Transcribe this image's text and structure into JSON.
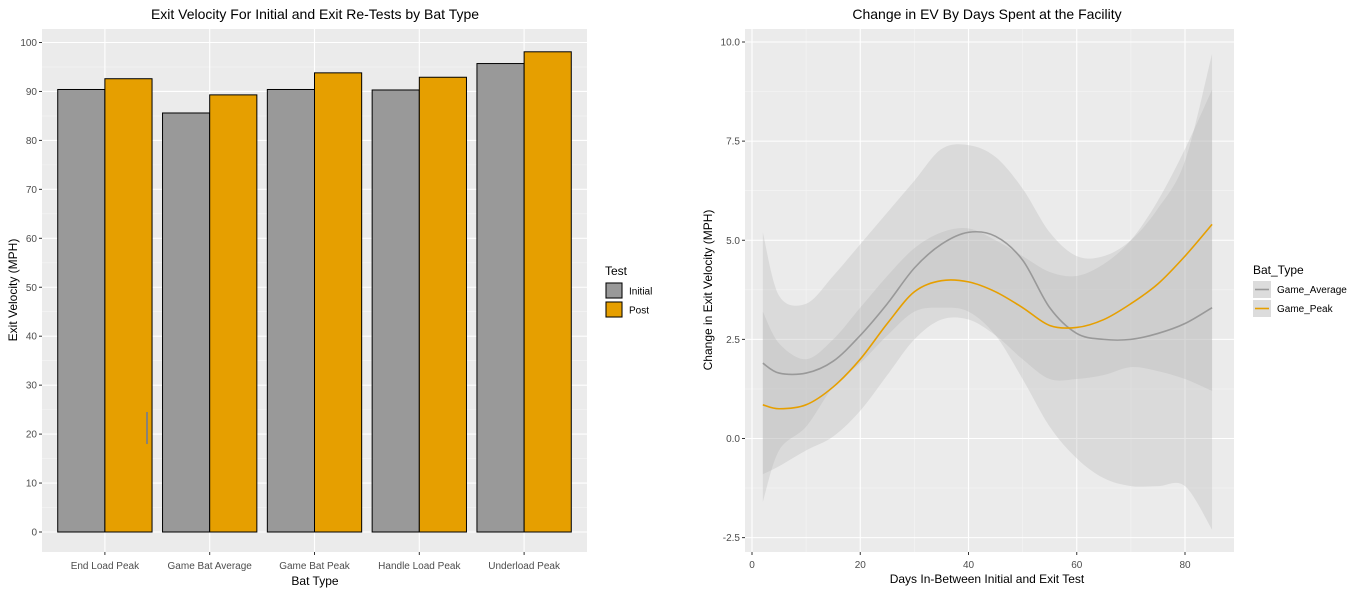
{
  "chart_data": [
    {
      "type": "bar",
      "title": "Exit Velocity For Initial and Exit Re-Tests by Bat Type",
      "xlabel": "Bat Type",
      "ylabel": "Exit Velocity (MPH)",
      "ylim": [
        0,
        100
      ],
      "yticks": [
        "0",
        "10",
        "20",
        "30",
        "40",
        "50",
        "60",
        "70",
        "80",
        "90",
        "100"
      ],
      "categories": [
        "End Load Peak",
        "Game Bat Average",
        "Game Bat Peak",
        "Handle Load Peak",
        "Underload Peak"
      ],
      "series": [
        {
          "name": "Initial",
          "color": "#999999",
          "values": [
            90.4,
            85.6,
            90.4,
            90.3,
            95.7
          ]
        },
        {
          "name": "Post",
          "color": "#E69F00",
          "values": [
            92.6,
            89.3,
            93.8,
            92.9,
            98.1
          ]
        }
      ],
      "legend": {
        "title": "Test",
        "position": "right"
      },
      "grid": true
    },
    {
      "type": "line",
      "title": "Change in EV By Days Spent at the Facility",
      "xlabel": "Days In-Between Initial and Exit Test",
      "ylabel": "Change in Exit Velocity (MPH)",
      "xlim": [
        0,
        88
      ],
      "ylim": [
        -2.5,
        10.0
      ],
      "xticks": [
        "0",
        "20",
        "40",
        "60",
        "80"
      ],
      "yticks": [
        "-2.5",
        "0.0",
        "2.5",
        "5.0",
        "7.5",
        "10.0"
      ],
      "legend": {
        "title": "Bat_Type",
        "position": "right"
      },
      "grid": true,
      "series": [
        {
          "name": "Game_Average",
          "color": "#999999",
          "x": [
            2,
            5,
            10,
            15,
            20,
            25,
            30,
            35,
            40,
            45,
            50,
            55,
            60,
            65,
            70,
            75,
            80,
            85
          ],
          "y": [
            1.9,
            1.65,
            1.65,
            1.95,
            2.6,
            3.4,
            4.3,
            4.9,
            5.2,
            5.1,
            4.5,
            3.3,
            2.65,
            2.5,
            2.5,
            2.65,
            2.9,
            3.3
          ],
          "lower": [
            -1.6,
            -0.3,
            0.3,
            1.3,
            1.9,
            2.6,
            3.2,
            3.3,
            3.2,
            2.6,
            1.5,
            0.3,
            -0.5,
            -1.0,
            -1.2,
            -1.2,
            -1.2,
            -2.3
          ],
          "upper": [
            5.2,
            3.6,
            3.4,
            4.1,
            4.9,
            5.7,
            6.5,
            7.3,
            7.4,
            7.1,
            6.3,
            5.2,
            4.6,
            4.6,
            5.0,
            5.8,
            7.0,
            9.7
          ]
        },
        {
          "name": "Game_Peak",
          "color": "#E69F00",
          "x": [
            2,
            5,
            10,
            15,
            20,
            25,
            30,
            35,
            40,
            45,
            50,
            55,
            60,
            65,
            70,
            75,
            80,
            85
          ],
          "y": [
            0.85,
            0.75,
            0.85,
            1.3,
            2.0,
            2.9,
            3.7,
            3.98,
            3.95,
            3.7,
            3.3,
            2.85,
            2.8,
            3.0,
            3.4,
            3.9,
            4.6,
            5.4
          ],
          "lower": [
            -0.9,
            -0.7,
            -0.3,
            0.05,
            0.7,
            1.6,
            2.5,
            3.0,
            3.0,
            2.6,
            2.0,
            1.5,
            1.5,
            1.6,
            1.8,
            1.7,
            1.5,
            1.2
          ],
          "upper": [
            3.2,
            2.4,
            2.0,
            2.5,
            3.3,
            4.1,
            4.8,
            5.2,
            5.3,
            5.0,
            4.6,
            4.2,
            4.1,
            4.4,
            5.0,
            6.0,
            7.3,
            8.8
          ]
        }
      ]
    }
  ]
}
